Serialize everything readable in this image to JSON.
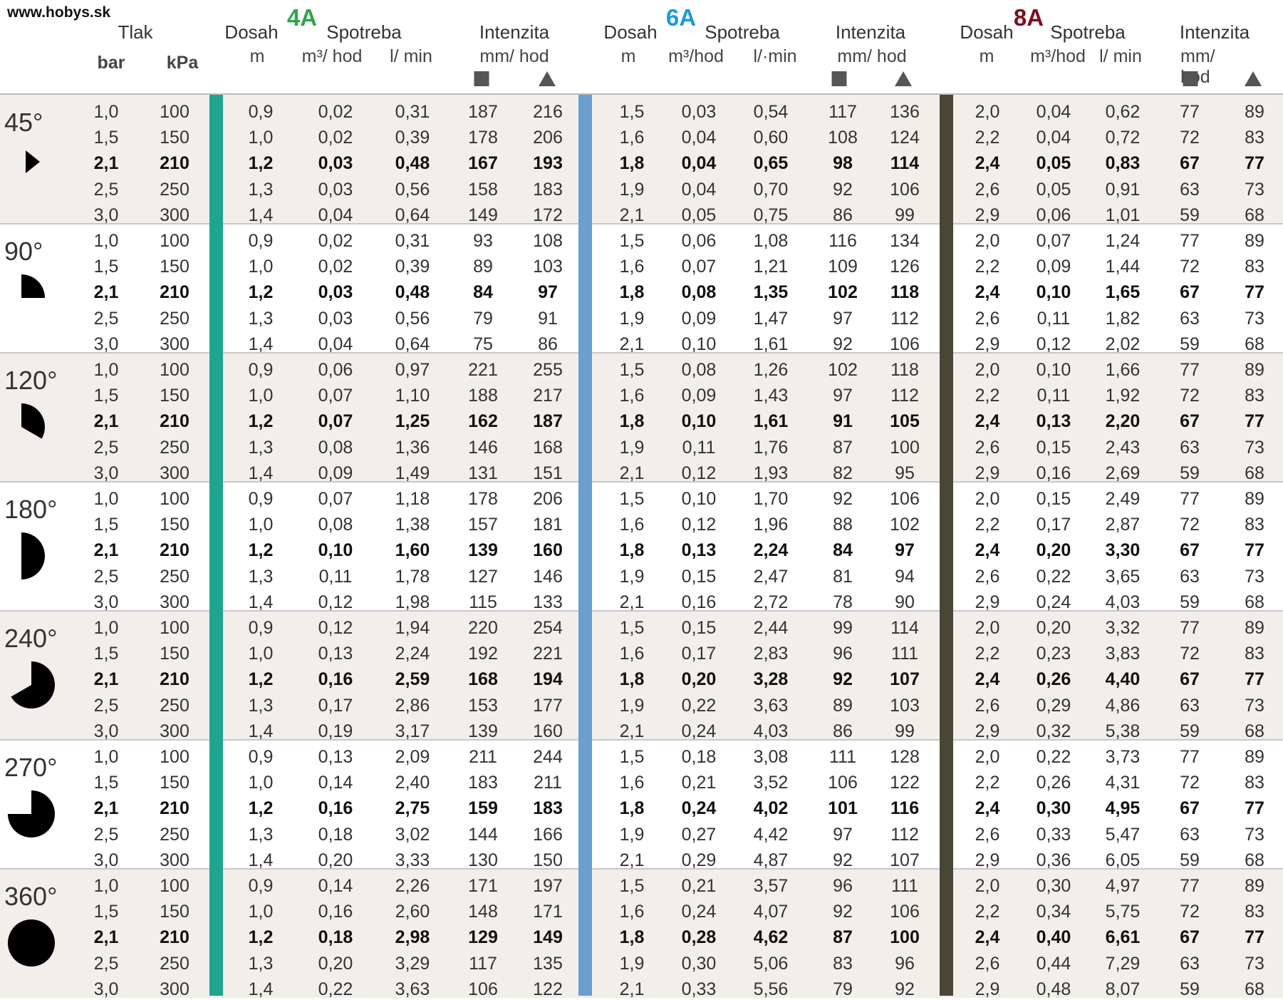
{
  "website": "www.hobys.sk",
  "header": {
    "tlak": "Tlak",
    "bar": "bar",
    "kpa": "kPa",
    "dosah": "Dosah",
    "spotreba": "Spotreba",
    "intenzita": "Intenzita",
    "unit_m": "m",
    "unit_m3": "m³/ hod",
    "unit_m3_b": "m³/hod",
    "unit_lmin": "l/ min",
    "unit_lmin_b": "l/·min",
    "unit_mmhod": "mm/ hod",
    "square_icon": "square-icon",
    "triangle_icon": "triangle-icon"
  },
  "nozzles": [
    {
      "label": "4A",
      "color": "#2fa44f",
      "bar_color": "#1fa58f"
    },
    {
      "label": "6A",
      "color": "#1c9ad6",
      "bar_color": "#6a9fcf"
    },
    {
      "label": "8A",
      "color": "#7c1020",
      "bar_color": "#4a4636"
    }
  ],
  "pressures": [
    [
      "1,0",
      "100"
    ],
    [
      "1,5",
      "150"
    ],
    [
      "2,1",
      "210"
    ],
    [
      "2,5",
      "250"
    ],
    [
      "3,0",
      "300"
    ]
  ],
  "groups": [
    {
      "angle": "45°",
      "shape": "45",
      "rows": [
        [
          "0,9",
          "0,02",
          "0,31",
          "187",
          "216",
          "1,5",
          "0,03",
          "0,54",
          "117",
          "136",
          "2,0",
          "0,04",
          "0,62",
          "77",
          "89"
        ],
        [
          "1,0",
          "0,02",
          "0,39",
          "178",
          "206",
          "1,6",
          "0,04",
          "0,60",
          "108",
          "124",
          "2,2",
          "0,04",
          "0,72",
          "72",
          "83"
        ],
        [
          "1,2",
          "0,03",
          "0,48",
          "167",
          "193",
          "1,8",
          "0,04",
          "0,65",
          "98",
          "114",
          "2,4",
          "0,05",
          "0,83",
          "67",
          "77"
        ],
        [
          "1,3",
          "0,03",
          "0,56",
          "158",
          "183",
          "1,9",
          "0,04",
          "0,70",
          "92",
          "106",
          "2,6",
          "0,05",
          "0,91",
          "63",
          "73"
        ],
        [
          "1,4",
          "0,04",
          "0,64",
          "149",
          "172",
          "2,1",
          "0,05",
          "0,75",
          "86",
          "99",
          "2,9",
          "0,06",
          "1,01",
          "59",
          "68"
        ]
      ]
    },
    {
      "angle": "90°",
      "shape": "90",
      "rows": [
        [
          "0,9",
          "0,02",
          "0,31",
          "93",
          "108",
          "1,5",
          "0,06",
          "1,08",
          "116",
          "134",
          "2,0",
          "0,07",
          "1,24",
          "77",
          "89"
        ],
        [
          "1,0",
          "0,02",
          "0,39",
          "89",
          "103",
          "1,6",
          "0,07",
          "1,21",
          "109",
          "126",
          "2,2",
          "0,09",
          "1,44",
          "72",
          "83"
        ],
        [
          "1,2",
          "0,03",
          "0,48",
          "84",
          "97",
          "1,8",
          "0,08",
          "1,35",
          "102",
          "118",
          "2,4",
          "0,10",
          "1,65",
          "67",
          "77"
        ],
        [
          "1,3",
          "0,03",
          "0,56",
          "79",
          "91",
          "1,9",
          "0,09",
          "1,47",
          "97",
          "112",
          "2,6",
          "0,11",
          "1,82",
          "63",
          "73"
        ],
        [
          "1,4",
          "0,04",
          "0,64",
          "75",
          "86",
          "2,1",
          "0,10",
          "1,61",
          "92",
          "106",
          "2,9",
          "0,12",
          "2,02",
          "59",
          "68"
        ]
      ]
    },
    {
      "angle": "120°",
      "shape": "120",
      "rows": [
        [
          "0,9",
          "0,06",
          "0,97",
          "221",
          "255",
          "1,5",
          "0,08",
          "1,26",
          "102",
          "118",
          "2,0",
          "0,10",
          "1,66",
          "77",
          "89"
        ],
        [
          "1,0",
          "0,07",
          "1,10",
          "188",
          "217",
          "1,6",
          "0,09",
          "1,43",
          "97",
          "112",
          "2,2",
          "0,11",
          "1,92",
          "72",
          "83"
        ],
        [
          "1,2",
          "0,07",
          "1,25",
          "162",
          "187",
          "1,8",
          "0,10",
          "1,61",
          "91",
          "105",
          "2,4",
          "0,13",
          "2,20",
          "67",
          "77"
        ],
        [
          "1,3",
          "0,08",
          "1,36",
          "146",
          "168",
          "1,9",
          "0,11",
          "1,76",
          "87",
          "100",
          "2,6",
          "0,15",
          "2,43",
          "63",
          "73"
        ],
        [
          "1,4",
          "0,09",
          "1,49",
          "131",
          "151",
          "2,1",
          "0,12",
          "1,93",
          "82",
          "95",
          "2,9",
          "0,16",
          "2,69",
          "59",
          "68"
        ]
      ]
    },
    {
      "angle": "180°",
      "shape": "180",
      "rows": [
        [
          "0,9",
          "0,07",
          "1,18",
          "178",
          "206",
          "1,5",
          "0,10",
          "1,70",
          "92",
          "106",
          "2,0",
          "0,15",
          "2,49",
          "77",
          "89"
        ],
        [
          "1,0",
          "0,08",
          "1,38",
          "157",
          "181",
          "1,6",
          "0,12",
          "1,96",
          "88",
          "102",
          "2,2",
          "0,17",
          "2,87",
          "72",
          "83"
        ],
        [
          "1,2",
          "0,10",
          "1,60",
          "139",
          "160",
          "1,8",
          "0,13",
          "2,24",
          "84",
          "97",
          "2,4",
          "0,20",
          "3,30",
          "67",
          "77"
        ],
        [
          "1,3",
          "0,11",
          "1,78",
          "127",
          "146",
          "1,9",
          "0,15",
          "2,47",
          "81",
          "94",
          "2,6",
          "0,22",
          "3,65",
          "63",
          "73"
        ],
        [
          "1,4",
          "0,12",
          "1,98",
          "115",
          "133",
          "2,1",
          "0,16",
          "2,72",
          "78",
          "90",
          "2,9",
          "0,24",
          "4,03",
          "59",
          "68"
        ]
      ]
    },
    {
      "angle": "240°",
      "shape": "240",
      "rows": [
        [
          "0,9",
          "0,12",
          "1,94",
          "220",
          "254",
          "1,5",
          "0,15",
          "2,44",
          "99",
          "114",
          "2,0",
          "0,20",
          "3,32",
          "77",
          "89"
        ],
        [
          "1,0",
          "0,13",
          "2,24",
          "192",
          "221",
          "1,6",
          "0,17",
          "2,83",
          "96",
          "111",
          "2,2",
          "0,23",
          "3,83",
          "72",
          "83"
        ],
        [
          "1,2",
          "0,16",
          "2,59",
          "168",
          "194",
          "1,8",
          "0,20",
          "3,28",
          "92",
          "107",
          "2,4",
          "0,26",
          "4,40",
          "67",
          "77"
        ],
        [
          "1,3",
          "0,17",
          "2,86",
          "153",
          "177",
          "1,9",
          "0,22",
          "3,63",
          "89",
          "103",
          "2,6",
          "0,29",
          "4,86",
          "63",
          "73"
        ],
        [
          "1,4",
          "0,19",
          "3,17",
          "139",
          "160",
          "2,1",
          "0,24",
          "4,03",
          "86",
          "99",
          "2,9",
          "0,32",
          "5,38",
          "59",
          "68"
        ]
      ]
    },
    {
      "angle": "270°",
      "shape": "270",
      "rows": [
        [
          "0,9",
          "0,13",
          "2,09",
          "211",
          "244",
          "1,5",
          "0,18",
          "3,08",
          "111",
          "128",
          "2,0",
          "0,22",
          "3,73",
          "77",
          "89"
        ],
        [
          "1,0",
          "0,14",
          "2,40",
          "183",
          "211",
          "1,6",
          "0,21",
          "3,52",
          "106",
          "122",
          "2,2",
          "0,26",
          "4,31",
          "72",
          "83"
        ],
        [
          "1,2",
          "0,16",
          "2,75",
          "159",
          "183",
          "1,8",
          "0,24",
          "4,02",
          "101",
          "116",
          "2,4",
          "0,30",
          "4,95",
          "67",
          "77"
        ],
        [
          "1,3",
          "0,18",
          "3,02",
          "144",
          "166",
          "1,9",
          "0,27",
          "4,42",
          "97",
          "112",
          "2,6",
          "0,33",
          "5,47",
          "63",
          "73"
        ],
        [
          "1,4",
          "0,20",
          "3,33",
          "130",
          "150",
          "2,1",
          "0,29",
          "4,87",
          "92",
          "107",
          "2,9",
          "0,36",
          "6,05",
          "59",
          "68"
        ]
      ]
    },
    {
      "angle": "360°",
      "shape": "360",
      "rows": [
        [
          "0,9",
          "0,14",
          "2,26",
          "171",
          "197",
          "1,5",
          "0,21",
          "3,57",
          "96",
          "111",
          "2,0",
          "0,30",
          "4,97",
          "77",
          "89"
        ],
        [
          "1,0",
          "0,16",
          "2,60",
          "148",
          "171",
          "1,6",
          "0,24",
          "4,07",
          "92",
          "106",
          "2,2",
          "0,34",
          "5,75",
          "72",
          "83"
        ],
        [
          "1,2",
          "0,18",
          "2,98",
          "129",
          "149",
          "1,8",
          "0,28",
          "4,62",
          "87",
          "100",
          "2,4",
          "0,40",
          "6,61",
          "67",
          "77"
        ],
        [
          "1,3",
          "0,20",
          "3,29",
          "117",
          "135",
          "1,9",
          "0,30",
          "5,06",
          "83",
          "96",
          "2,6",
          "0,44",
          "7,29",
          "63",
          "73"
        ],
        [
          "1,4",
          "0,22",
          "3,63",
          "106",
          "122",
          "2,1",
          "0,33",
          "5,56",
          "79",
          "92",
          "2,9",
          "0,48",
          "8,07",
          "59",
          "68"
        ]
      ]
    }
  ]
}
